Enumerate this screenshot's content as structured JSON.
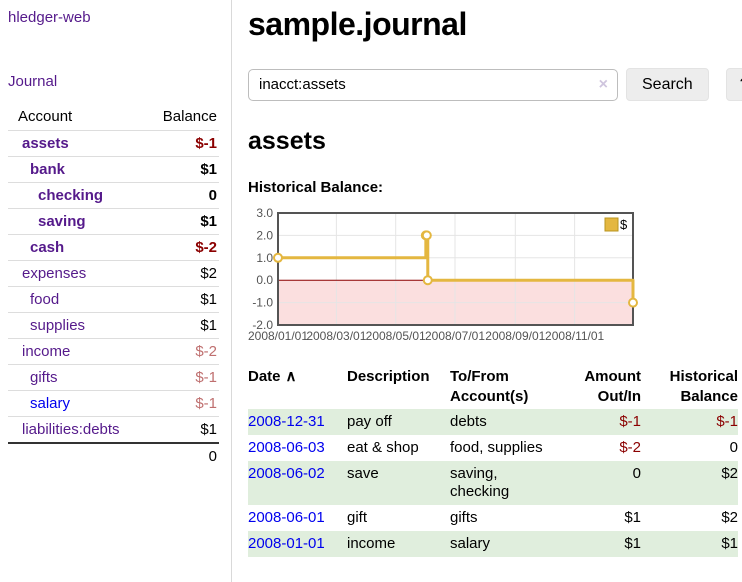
{
  "colors": {
    "link_purple": "#551a8b",
    "link_blue": "#0000ee",
    "negative_strong": "#8b0000",
    "negative_soft": "#bf6f6f",
    "row_stripe_green": "#e0eedd",
    "chart_line": "#e4b740",
    "chart_negative_fill": "#fbdfdf",
    "chart_zero_line": "#8b0000",
    "chart_border": "#545454"
  },
  "sidebar": {
    "app_title": "hledger-web",
    "journal_link": "Journal",
    "accounts": {
      "header_account": "Account",
      "header_balance": "Balance",
      "rows": [
        {
          "name": "assets",
          "depth": 1,
          "in_matched": true,
          "balance": "$-1",
          "neg": "strong",
          "link": "visited"
        },
        {
          "name": "bank",
          "depth": 2,
          "in_matched": true,
          "balance": "$1",
          "neg": "none",
          "link": "visited"
        },
        {
          "name": "checking",
          "depth": 3,
          "in_matched": true,
          "balance": "0",
          "neg": "none",
          "link": "visited"
        },
        {
          "name": "saving",
          "depth": 3,
          "in_matched": true,
          "balance": "$1",
          "neg": "none",
          "link": "visited"
        },
        {
          "name": "cash",
          "depth": 2,
          "in_matched": true,
          "balance": "$-2",
          "neg": "strong",
          "link": "visited"
        },
        {
          "name": "expenses",
          "depth": 1,
          "in_matched": false,
          "balance": "$2",
          "neg": "none",
          "link": "visited"
        },
        {
          "name": "food",
          "depth": 2,
          "in_matched": false,
          "balance": "$1",
          "neg": "none",
          "link": "visited"
        },
        {
          "name": "supplies",
          "depth": 2,
          "in_matched": false,
          "balance": "$1",
          "neg": "none",
          "link": "visited"
        },
        {
          "name": "income",
          "depth": 1,
          "in_matched": false,
          "balance": "$-2",
          "neg": "soft",
          "link": "visited"
        },
        {
          "name": "gifts",
          "depth": 2,
          "in_matched": false,
          "balance": "$-1",
          "neg": "soft",
          "link": "visited"
        },
        {
          "name": "salary",
          "depth": 2,
          "in_matched": false,
          "balance": "$-1",
          "neg": "soft",
          "link": "unvisited"
        },
        {
          "name": "liabilities:debts",
          "depth": 1,
          "in_matched": false,
          "balance": "$1",
          "neg": "none",
          "link": "visited"
        }
      ],
      "total": "0"
    }
  },
  "main": {
    "title": "sample.journal",
    "search": {
      "value": "inacct:assets",
      "clear_icon": "×",
      "button_label": "Search",
      "help_label": "?"
    },
    "account_heading": "assets",
    "chart_label": "Historical Balance:"
  },
  "chart_data": {
    "type": "line",
    "title": "Historical Balance",
    "step": true,
    "series": [
      {
        "name": "$",
        "points": [
          [
            "2008-01-01",
            1
          ],
          [
            "2008-06-01",
            2
          ],
          [
            "2008-06-02",
            2
          ],
          [
            "2008-06-03",
            0
          ],
          [
            "2008-12-31",
            -1
          ]
        ]
      }
    ],
    "x_range": [
      "2008-01-01",
      "2008-12-31"
    ],
    "ylim": [
      -2,
      3
    ],
    "yticks": [
      {
        "label": "3.0",
        "v": 3
      },
      {
        "label": "2.0",
        "v": 2
      },
      {
        "label": "1.0",
        "v": 1
      },
      {
        "label": "0.0",
        "v": 0
      },
      {
        "label": "-1.0",
        "v": -1
      },
      {
        "label": "-2.0",
        "v": -2
      }
    ],
    "xticks": [
      {
        "label": "2008/01/01",
        "x": "2008-01-01"
      },
      {
        "label": "2008/03/01",
        "x": "2008-03-01"
      },
      {
        "label": "2008/05/01",
        "x": "2008-05-01"
      },
      {
        "label": "2008/07/01",
        "x": "2008-07-01"
      },
      {
        "label": "2008/09/01",
        "x": "2008-09-01"
      },
      {
        "label": "2008/11/01",
        "x": "2008-11-01"
      }
    ],
    "legend": {
      "position": "top-right",
      "entries": [
        "$"
      ]
    },
    "negative_region_shaded": true,
    "grid": true
  },
  "register": {
    "headers": {
      "date": "Date",
      "sort_icon": "∧",
      "description": "Description",
      "accounts_line1": "To/From",
      "accounts_line2": "Account(s)",
      "amount_line1": "Amount",
      "amount_line2": "Out/In",
      "balance_line1": "Historical",
      "balance_line2": "Balance"
    },
    "rows": [
      {
        "date": "2008-12-31",
        "description": "pay off",
        "accounts": "debts",
        "amount": "$-1",
        "amount_neg": true,
        "balance": "$-1",
        "balance_neg": true
      },
      {
        "date": "2008-06-03",
        "description": "eat & shop",
        "accounts": "food, supplies",
        "amount": "$-2",
        "amount_neg": true,
        "balance": "0",
        "balance_neg": false
      },
      {
        "date": "2008-06-02",
        "description": "save",
        "accounts": "saving, checking",
        "amount": "0",
        "amount_neg": false,
        "balance": "$2",
        "balance_neg": false
      },
      {
        "date": "2008-06-01",
        "description": "gift",
        "accounts": "gifts",
        "amount": "$1",
        "amount_neg": false,
        "balance": "$2",
        "balance_neg": false
      },
      {
        "date": "2008-01-01",
        "description": "income",
        "accounts": "salary",
        "amount": "$1",
        "amount_neg": false,
        "balance": "$1",
        "balance_neg": false
      }
    ]
  }
}
